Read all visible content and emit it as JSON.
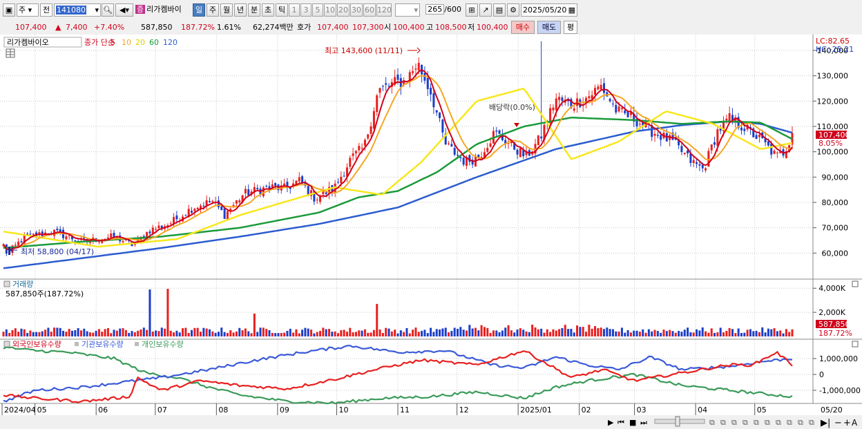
{
  "toolbar": {
    "market": "주",
    "type": "전",
    "code": "141080",
    "stock_tag": "증",
    "stock_name": "리가켐바이",
    "periods": [
      "일",
      "주",
      "월",
      "년",
      "분",
      "초",
      "틱"
    ],
    "active_period": "일",
    "intervals": [
      "1",
      "3",
      "5",
      "10",
      "20",
      "30",
      "60",
      "120"
    ],
    "count": "265",
    "total": "/600",
    "date": "2025/05/20"
  },
  "quote": {
    "price": "107,400",
    "change": "7,400",
    "change_pct": "+7.40%",
    "volume": "587,850",
    "volume_ratio": "187.72%",
    "turnover": "1.61%",
    "amount": "62,274백만",
    "ask_label": "호가",
    "ask1": "107,400",
    "ask2": "107,300",
    "open_label": "시",
    "open": "100,400",
    "high_label": "고",
    "high": "108,500",
    "low_label": "저",
    "low": "100,400",
    "buy": "매수",
    "sell": "매도",
    "flat": "평"
  },
  "colors": {
    "ma5": "#d0021b",
    "ma10": "#f5a623",
    "ma20": "#f8e71c",
    "ma60": "#1a9a3a",
    "ma120": "#2b5ccf",
    "up": "#e8201f",
    "down": "#1c3fc9",
    "foreign": "#e8201f",
    "institution": "#3a5ad8",
    "individual": "#3a9a5a"
  },
  "chart_data": [
    {
      "type": "candlestick",
      "legend": {
        "name": "리가켐바이오",
        "label": "종가 단순",
        "periods": [
          "5",
          "10",
          "20",
          "60",
          "120"
        ]
      },
      "annotations": {
        "high": "최고 143,600 (11/11)",
        "low": "최저 58,800 (04/17)",
        "dividend": "배당락(0.0%)",
        "lc": "LC:82.65",
        "hc": "HC:-25.21",
        "last_price": "107,400",
        "last_pct": "8.05%"
      },
      "ylim": [
        50000,
        146000
      ],
      "yticks": [
        "140,000",
        "130,000",
        "120,000",
        "110,000",
        "100,000",
        "90,000",
        "80,000",
        "70,000",
        "60,000"
      ],
      "ytick_values": [
        140000,
        130000,
        120000,
        110000,
        100000,
        90000,
        80000,
        70000,
        60000
      ],
      "keypoints": [
        [
          "2024-04-15",
          63000
        ],
        [
          "2024-04-17",
          59500
        ],
        [
          "2024-04-25",
          66000
        ],
        [
          "2024-05-10",
          68500
        ],
        [
          "2024-05-25",
          64500
        ],
        [
          "2024-06-10",
          66500
        ],
        [
          "2024-06-20",
          63000
        ],
        [
          "2024-06-28",
          69000
        ],
        [
          "2024-07-08",
          71500
        ],
        [
          "2024-07-20",
          78000
        ],
        [
          "2024-07-30",
          80500
        ],
        [
          "2024-08-05",
          75000
        ],
        [
          "2024-08-15",
          83500
        ],
        [
          "2024-08-28",
          86000
        ],
        [
          "2024-09-05",
          85500
        ],
        [
          "2024-09-12",
          88500
        ],
        [
          "2024-09-20",
          81500
        ],
        [
          "2024-09-30",
          86000
        ],
        [
          "2024-10-08",
          97000
        ],
        [
          "2024-10-15",
          102000
        ],
        [
          "2024-10-22",
          124000
        ],
        [
          "2024-10-30",
          127000
        ],
        [
          "2024-11-05",
          128000
        ],
        [
          "2024-11-11",
          135000
        ],
        [
          "2024-11-18",
          123000
        ],
        [
          "2024-11-25",
          103000
        ],
        [
          "2024-12-05",
          96000
        ],
        [
          "2024-12-12",
          98000
        ],
        [
          "2024-12-20",
          107500
        ],
        [
          "2024-12-28",
          103000
        ],
        [
          "2025-01-05",
          98000
        ],
        [
          "2025-01-12",
          105000
        ],
        [
          "2025-01-20",
          121000
        ],
        [
          "2025-01-28",
          118500
        ],
        [
          "2025-02-05",
          121500
        ],
        [
          "2025-02-12",
          126000
        ],
        [
          "2025-02-20",
          116000
        ],
        [
          "2025-03-01",
          113000
        ],
        [
          "2025-03-10",
          108000
        ],
        [
          "2025-03-20",
          104000
        ],
        [
          "2025-03-30",
          96000
        ],
        [
          "2025-04-05",
          93000
        ],
        [
          "2025-04-12",
          108000
        ],
        [
          "2025-04-18",
          113000
        ],
        [
          "2025-04-25",
          110000
        ],
        [
          "2025-05-05",
          104000
        ],
        [
          "2025-05-12",
          98000
        ],
        [
          "2025-05-16",
          100000
        ],
        [
          "2025-05-20",
          107400
        ]
      ],
      "ma_levels": {
        "ma20": [
          [
            0,
            68500
          ],
          [
            0.12,
            62500
          ],
          [
            0.22,
            65500
          ],
          [
            0.3,
            75000
          ],
          [
            0.42,
            86000
          ],
          [
            0.48,
            83000
          ],
          [
            0.53,
            96000
          ],
          [
            0.6,
            120000
          ],
          [
            0.66,
            125000
          ],
          [
            0.72,
            97000
          ],
          [
            0.78,
            104000
          ],
          [
            0.84,
            116000
          ],
          [
            0.9,
            111000
          ],
          [
            0.96,
            101000
          ],
          [
            1.0,
            103500
          ]
        ],
        "ma60": [
          [
            0,
            62000
          ],
          [
            0.1,
            64500
          ],
          [
            0.2,
            66500
          ],
          [
            0.3,
            70000
          ],
          [
            0.4,
            76000
          ],
          [
            0.45,
            82000
          ],
          [
            0.5,
            84500
          ],
          [
            0.55,
            92000
          ],
          [
            0.6,
            103000
          ],
          [
            0.66,
            110000
          ],
          [
            0.72,
            113500
          ],
          [
            0.8,
            112500
          ],
          [
            0.86,
            111000
          ],
          [
            0.92,
            112000
          ],
          [
            0.96,
            111500
          ],
          [
            1.0,
            105000
          ]
        ],
        "ma120": [
          [
            0,
            54000
          ],
          [
            0.1,
            58000
          ],
          [
            0.2,
            62000
          ],
          [
            0.3,
            66500
          ],
          [
            0.4,
            71500
          ],
          [
            0.5,
            78000
          ],
          [
            0.6,
            90000
          ],
          [
            0.7,
            101000
          ],
          [
            0.8,
            108000
          ],
          [
            0.86,
            110500
          ],
          [
            0.92,
            112000
          ],
          [
            0.96,
            111000
          ],
          [
            1.0,
            107500
          ]
        ]
      }
    },
    {
      "type": "bar",
      "title": "거래량",
      "value_label": "587,850주(187.72%)",
      "yticks": [
        "4,000K",
        "2,000K"
      ],
      "ytick_values": [
        4000000,
        2000000
      ],
      "last_value": "587,850",
      "last_pct": "187.72%",
      "spikes": [
        [
          "2024-06-28",
          3900000
        ],
        [
          "2024-07-08",
          3950000
        ],
        [
          "2024-10-22",
          2700000
        ],
        [
          "2024-08-20",
          1900000
        ]
      ]
    },
    {
      "type": "line",
      "series": [
        {
          "name": "외국인보유수량"
        },
        {
          "name": "기관보유수량"
        },
        {
          "name": "개인보유수량"
        }
      ],
      "yticks": [
        "1,000,000",
        "0",
        "-1,000,000"
      ],
      "ytick_values": [
        1000000,
        0,
        -1000000
      ],
      "foreign": [
        [
          0,
          -1300000
        ],
        [
          0.04,
          -1500000
        ],
        [
          0.1,
          -1700000
        ],
        [
          0.16,
          -1400000
        ],
        [
          0.17,
          -200000
        ],
        [
          0.2,
          -1000000
        ],
        [
          0.25,
          -400000
        ],
        [
          0.3,
          -700000
        ],
        [
          0.36,
          -900000
        ],
        [
          0.42,
          -300000
        ],
        [
          0.48,
          400000
        ],
        [
          0.53,
          900000
        ],
        [
          0.6,
          600000
        ],
        [
          0.66,
          1500000
        ],
        [
          0.72,
          -200000
        ],
        [
          0.76,
          300000
        ],
        [
          0.8,
          -400000
        ],
        [
          0.86,
          100000
        ],
        [
          0.92,
          600000
        ],
        [
          0.95,
          600000
        ],
        [
          0.98,
          1400000
        ],
        [
          1.0,
          600000
        ]
      ],
      "institution": [
        [
          0,
          -1700000
        ],
        [
          0.04,
          -1000000
        ],
        [
          0.1,
          -800000
        ],
        [
          0.2,
          -200000
        ],
        [
          0.26,
          300000
        ],
        [
          0.32,
          900000
        ],
        [
          0.38,
          1400000
        ],
        [
          0.44,
          1800000
        ],
        [
          0.5,
          1400000
        ],
        [
          0.56,
          1500000
        ],
        [
          0.62,
          600000
        ],
        [
          0.66,
          400000
        ],
        [
          0.7,
          1100000
        ],
        [
          0.74,
          600000
        ],
        [
          0.78,
          300000
        ],
        [
          0.82,
          1100000
        ],
        [
          0.86,
          300000
        ],
        [
          0.92,
          500000
        ],
        [
          0.96,
          800000
        ],
        [
          1.0,
          1000000
        ]
      ],
      "individual": [
        [
          0,
          1700000
        ],
        [
          0.04,
          1500000
        ],
        [
          0.08,
          1400000
        ],
        [
          0.14,
          1000000
        ],
        [
          0.18,
          100000
        ],
        [
          0.22,
          -200000
        ],
        [
          0.26,
          -800000
        ],
        [
          0.3,
          -1300000
        ],
        [
          0.36,
          -1700000
        ],
        [
          0.42,
          -1800000
        ],
        [
          0.48,
          -1500000
        ],
        [
          0.54,
          -1400000
        ],
        [
          0.6,
          -1100000
        ],
        [
          0.66,
          -1500000
        ],
        [
          0.7,
          -800000
        ],
        [
          0.74,
          -400000
        ],
        [
          0.8,
          0
        ],
        [
          0.86,
          -700000
        ],
        [
          0.92,
          -1000000
        ],
        [
          0.96,
          -1200000
        ],
        [
          1.0,
          -1400000
        ]
      ]
    }
  ],
  "xaxis": {
    "labels": [
      "2024/04",
      "05",
      "06",
      "07",
      "08",
      "09",
      "10",
      "11",
      "12",
      "2025/01",
      "02",
      "03",
      "04",
      "05"
    ],
    "right_label": "05/20"
  }
}
